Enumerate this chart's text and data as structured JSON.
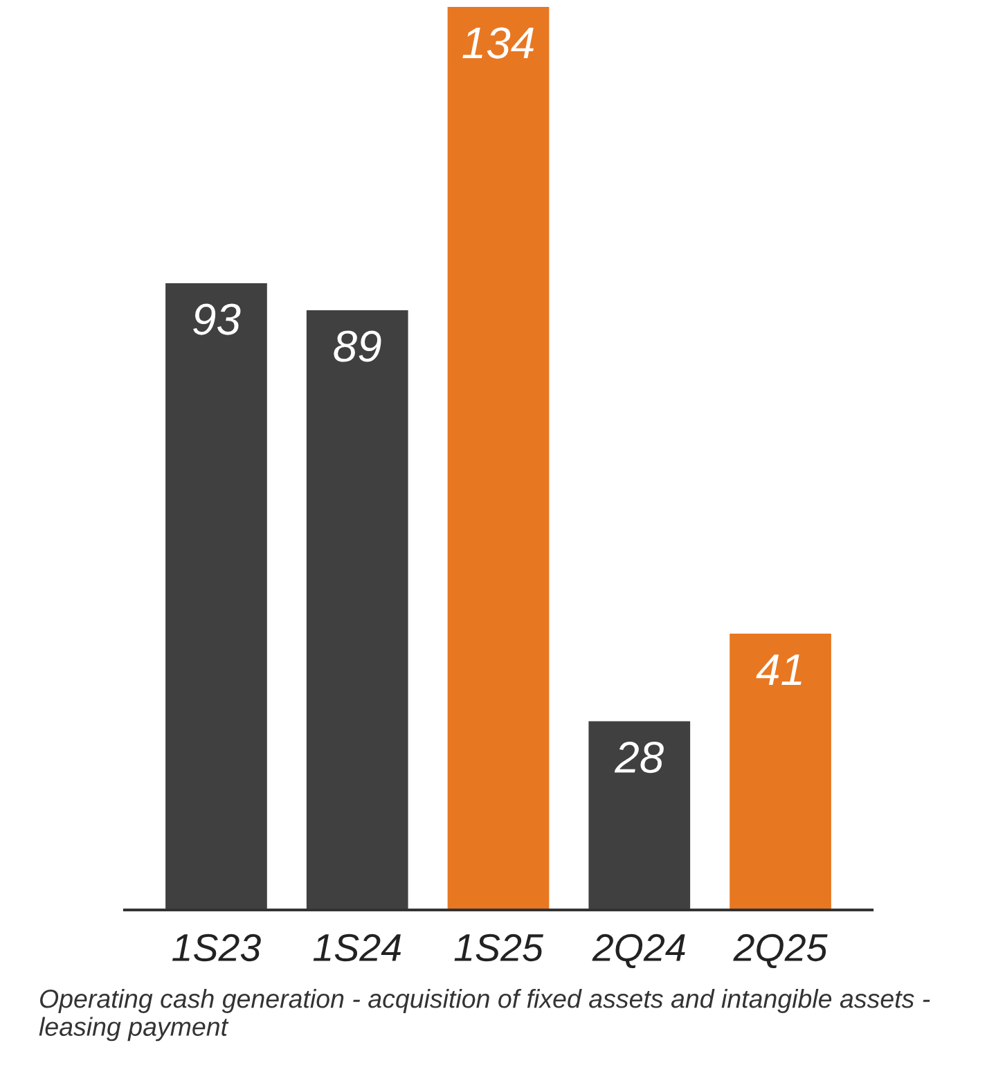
{
  "chart_data": {
    "type": "bar",
    "categories": [
      "1S23",
      "1S24",
      "1S25",
      "2Q24",
      "2Q25"
    ],
    "values": [
      93,
      89,
      134,
      28,
      41
    ],
    "colors": [
      "#404040",
      "#404040",
      "#e87722",
      "#404040",
      "#e87722"
    ],
    "data_labels": true,
    "grid": false,
    "legend": false,
    "tick_labels": "x",
    "annotations": [
      "Operating cash generation - acquisition of fixed assets and intangible assets - leasing payment"
    ]
  }
}
